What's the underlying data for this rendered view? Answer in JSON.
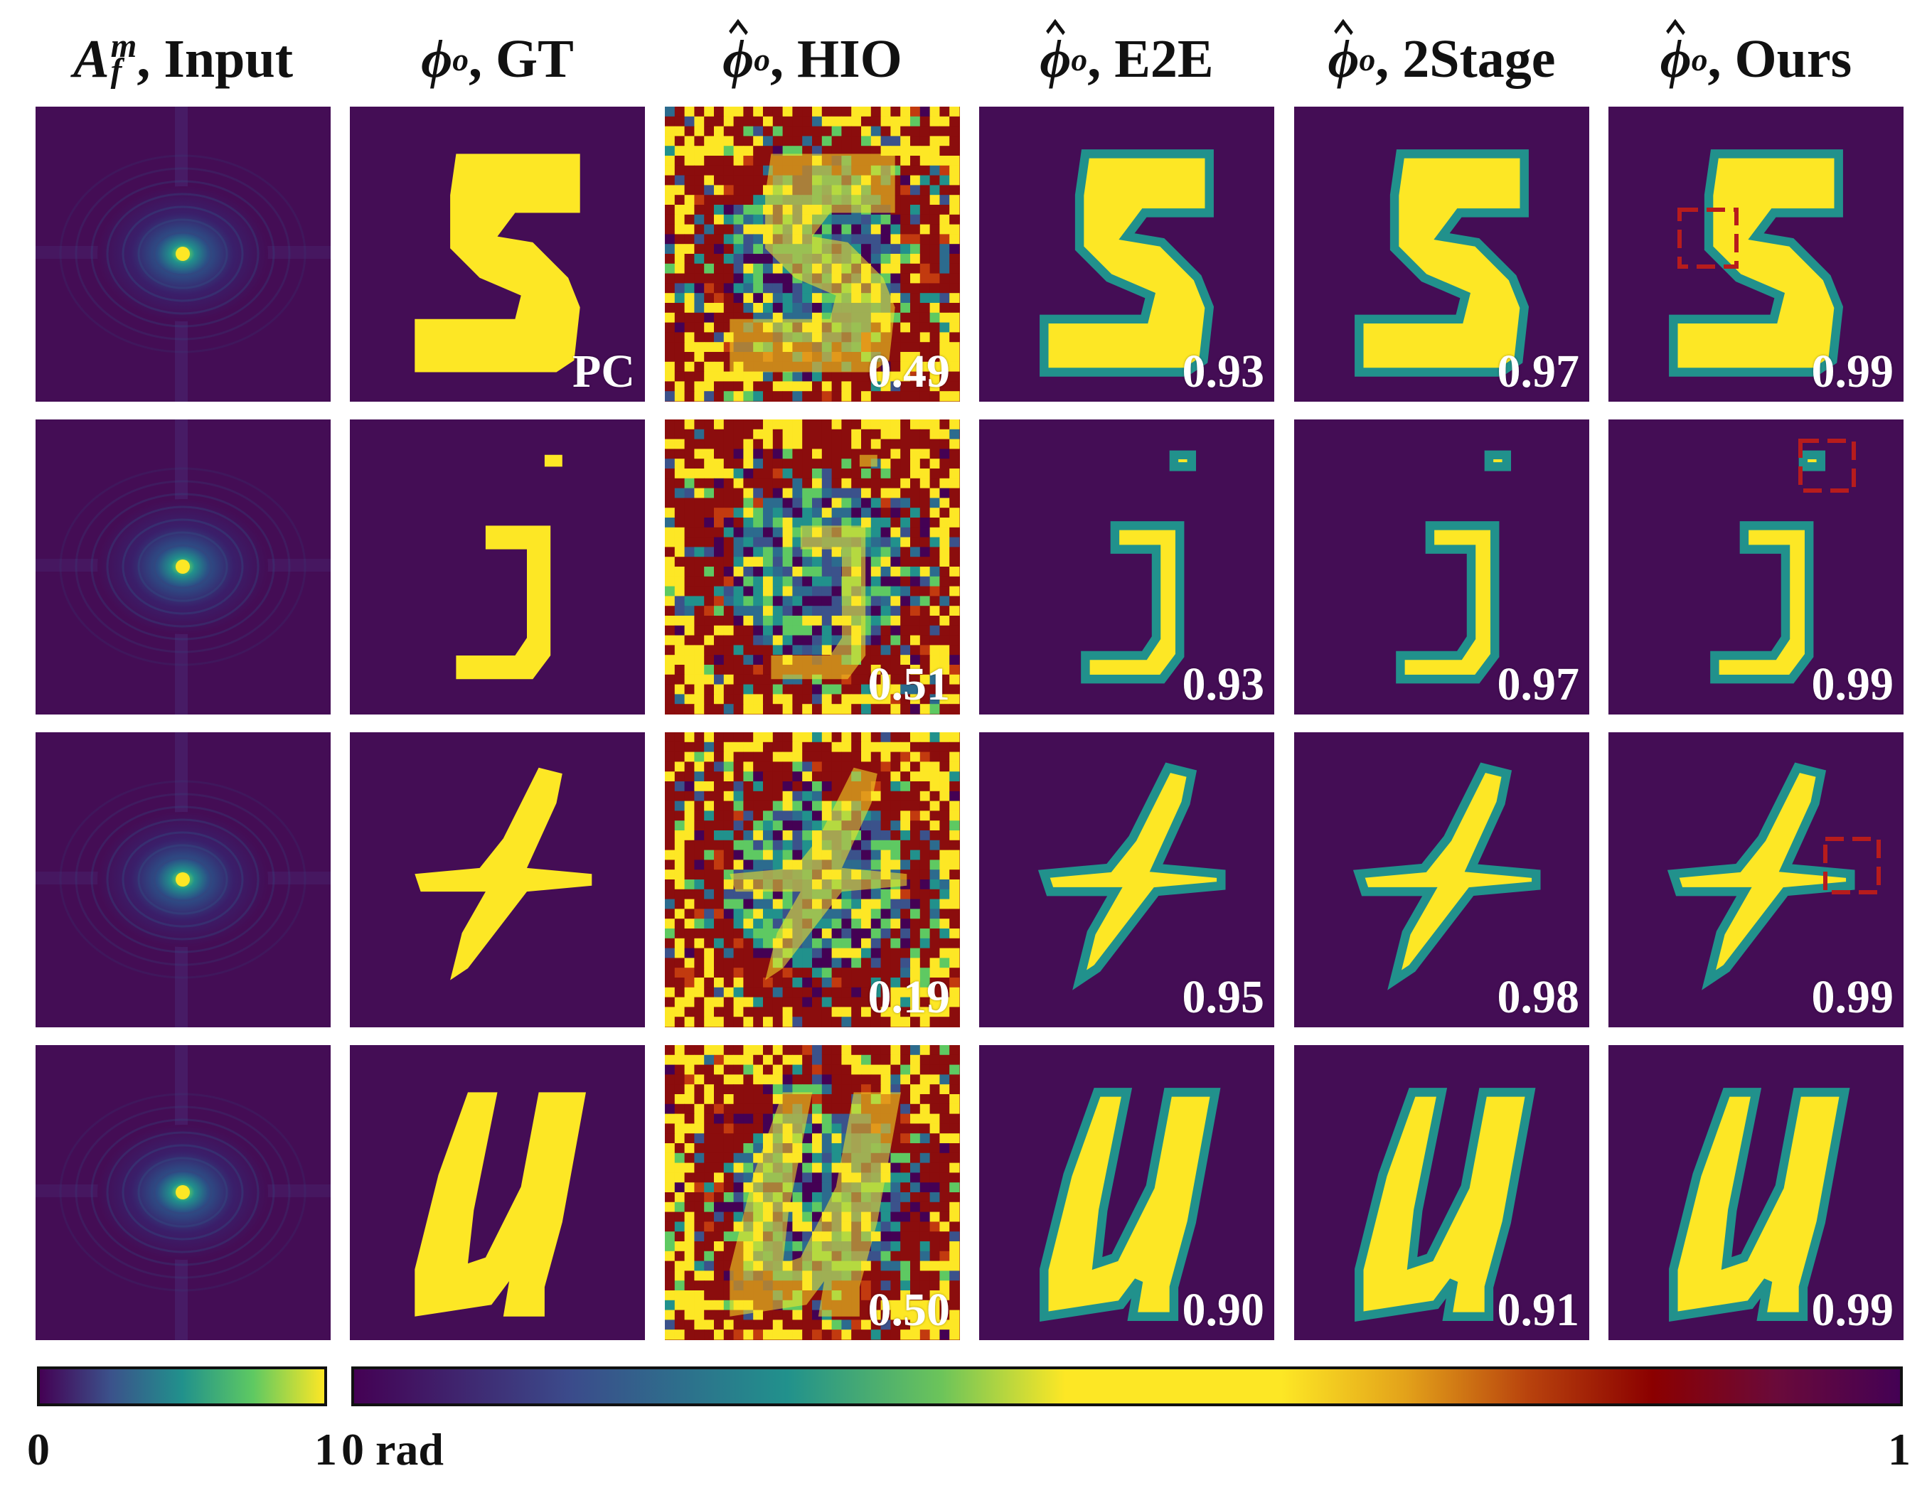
{
  "columns": [
    {
      "name": "A",
      "super": "m",
      "sub": "f",
      "label": ", Input",
      "hat": false
    },
    {
      "name": "ϕ",
      "sub": "o",
      "label": ", GT",
      "hat": false
    },
    {
      "name": "ϕ",
      "sub": "o",
      "label": ", HIO",
      "hat": true
    },
    {
      "name": "ϕ",
      "sub": "o",
      "label": ", E2E",
      "hat": true
    },
    {
      "name": "ϕ",
      "sub": "o",
      "label": ", 2Stage",
      "hat": true
    },
    {
      "name": "ϕ",
      "sub": "o",
      "label": ", Ours",
      "hat": true
    }
  ],
  "rows": [
    {
      "letter": "S",
      "scores": [
        "PC",
        "0.49",
        "0.93",
        "0.97",
        "0.99"
      ]
    },
    {
      "letter": "j",
      "scores": [
        "",
        "0.51",
        "0.93",
        "0.97",
        "0.99"
      ]
    },
    {
      "letter": "t",
      "scores": [
        "",
        "0.19",
        "0.95",
        "0.98",
        "0.99"
      ]
    },
    {
      "letter": "u",
      "scores": [
        "",
        "0.50",
        "0.90",
        "0.91",
        "0.99"
      ]
    }
  ],
  "colorbars": {
    "left": {
      "min": "0",
      "max": "1"
    },
    "right": {
      "min": "0 rad",
      "max": "1"
    }
  },
  "colors": {
    "background": "#440d55",
    "foreground": "#fde725",
    "hio_dark": "#8b0d0d",
    "box": "#b71c1c"
  }
}
